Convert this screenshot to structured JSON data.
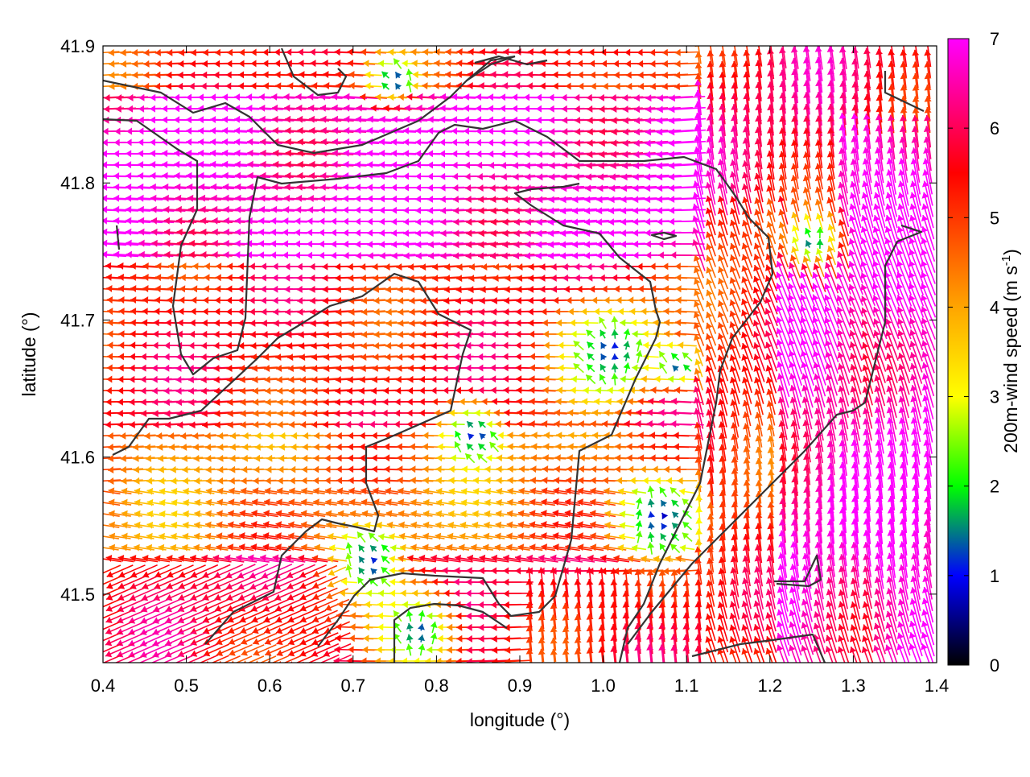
{
  "chart_data": {
    "type": "vector-field",
    "xlabel": "longitude (°)",
    "ylabel": "latitude (°)",
    "colorbar_label": "200m-wind speed (m s",
    "colorbar_label_sup": "-1",
    "colorbar_label_end": ")",
    "xlim": [
      0.4,
      1.4
    ],
    "ylim": [
      41.45,
      41.9
    ],
    "x_ticks": [
      "0.4",
      "0.5",
      "0.6",
      "0.7",
      "0.8",
      "0.9",
      "1.0",
      "1.1",
      "1.2",
      "1.3",
      "1.4"
    ],
    "y_ticks": [
      "41.5",
      "41.6",
      "41.7",
      "41.8",
      "41.9"
    ],
    "colorbar_ticks": [
      "0",
      "1",
      "2",
      "3",
      "4",
      "5",
      "6",
      "7"
    ],
    "colorbar_range": [
      0,
      7
    ],
    "colormap": [
      "#000000",
      "#0000ff",
      "#00ff00",
      "#ffff00",
      "#ffa500",
      "#ff0000",
      "#ff00ff"
    ],
    "contour_color": "#333333",
    "grid": false,
    "legend_position": "right colorbar"
  }
}
